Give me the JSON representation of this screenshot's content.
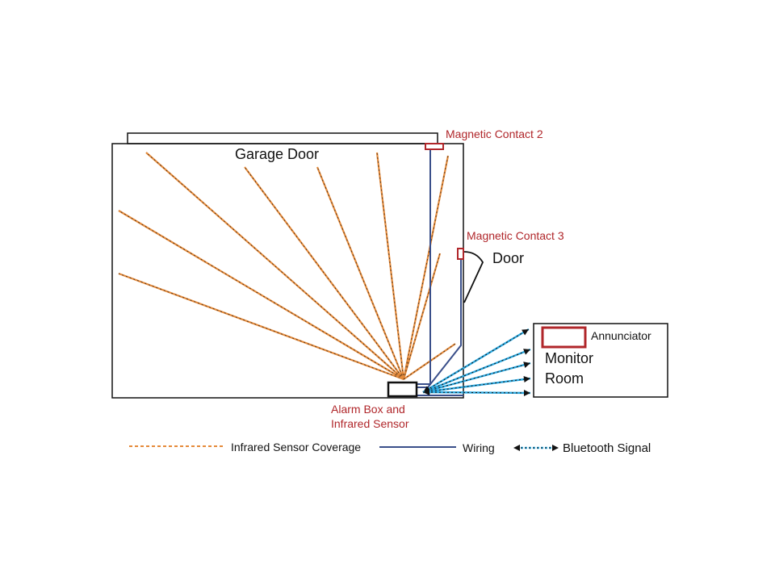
{
  "labels": {
    "garage_door": "Garage Door",
    "magnetic_contact_2": "Magnetic Contact 2",
    "magnetic_contact_3": "Magnetic Contact 3",
    "door": "Door",
    "annunciator": "Annunciator",
    "monitor_line1": "Monitor",
    "monitor_line2": "Room",
    "alarm_line1": "Alarm Box and",
    "alarm_line2": "Infrared Sensor"
  },
  "legend": {
    "ir": "Infrared Sensor Coverage",
    "wiring": "Wiring",
    "bluetooth": "Bluetooth Signal"
  },
  "colors": {
    "ir_line": "#e58a3a",
    "wiring": "#3a4f8a",
    "bluetooth": "#2aa8e0",
    "contact": "#b0262a",
    "outline": "#111111"
  }
}
